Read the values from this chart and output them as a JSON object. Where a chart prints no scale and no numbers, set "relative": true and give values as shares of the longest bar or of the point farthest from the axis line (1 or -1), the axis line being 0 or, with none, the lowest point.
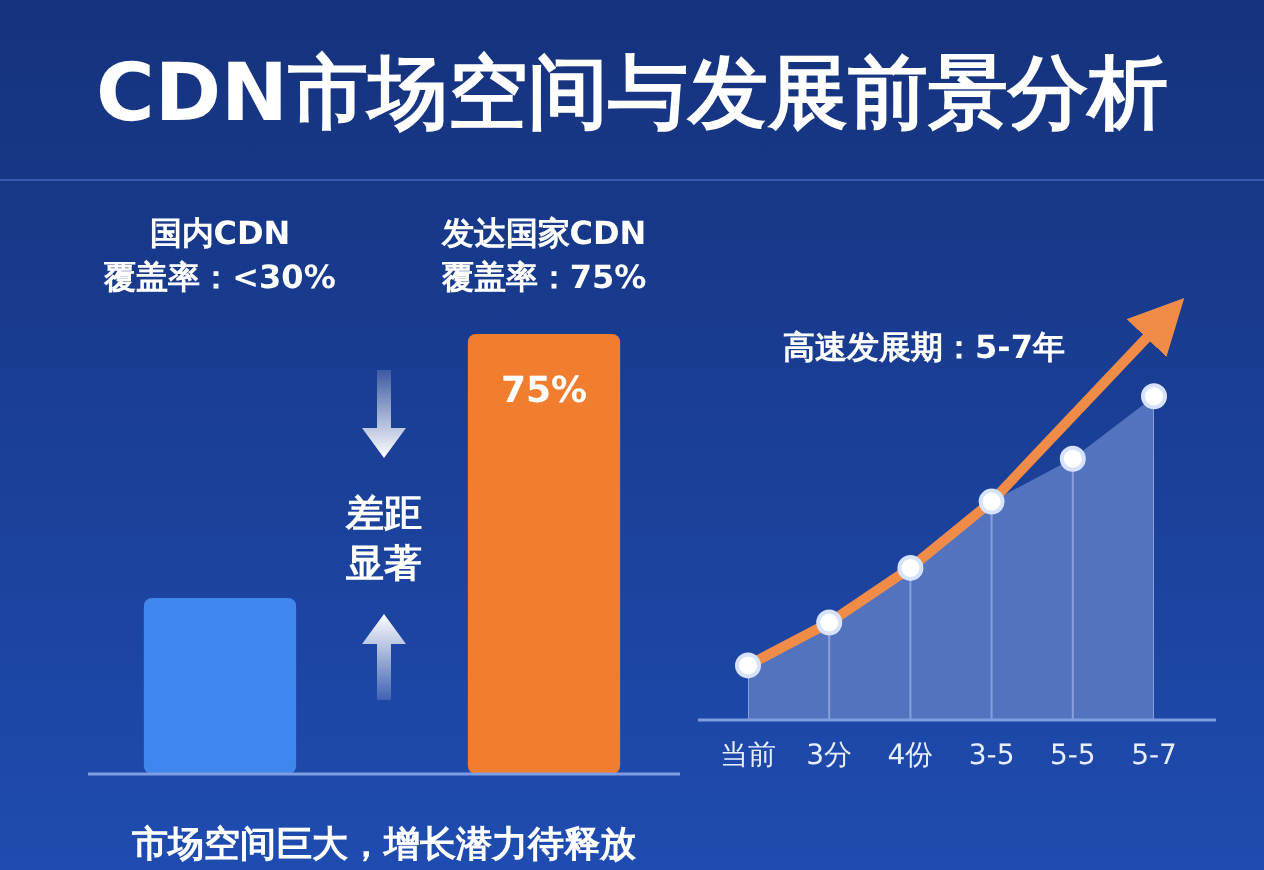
{
  "chart_data": [
    {
      "type": "bar",
      "title": "CDN市场空间与发展前景分析",
      "categories": [
        "国内CDN\n覆盖率：<30%",
        "发达国家CDN\n覆盖率：75%"
      ],
      "values": [
        30,
        75
      ],
      "colors": [
        "#3f87ee",
        "#f07e2e"
      ],
      "value_labels": [
        null,
        "75%"
      ],
      "annotations": [
        "差距",
        "显著",
        "市场空间巨大，增长潜力待释放"
      ]
    },
    {
      "type": "area",
      "categories": [
        "当前",
        "3分",
        "4份",
        "3-5",
        "5-5",
        "5-7"
      ],
      "relative": true,
      "grid": "x",
      "marker": "circle",
      "series": [
        {
          "type": "area",
          "color": "#5373bf",
          "values": [
            0.14,
            0.25,
            0.39,
            0.56,
            0.67,
            0.83
          ]
        },
        {
          "type": "line",
          "color": "#f08c48",
          "marker": "none",
          "values": [
            0.14,
            0.25,
            0.39,
            0.56,
            0.78,
            1
          ]
        }
      ],
      "annotations": [
        "高速发展期：5-7年"
      ]
    }
  ]
}
